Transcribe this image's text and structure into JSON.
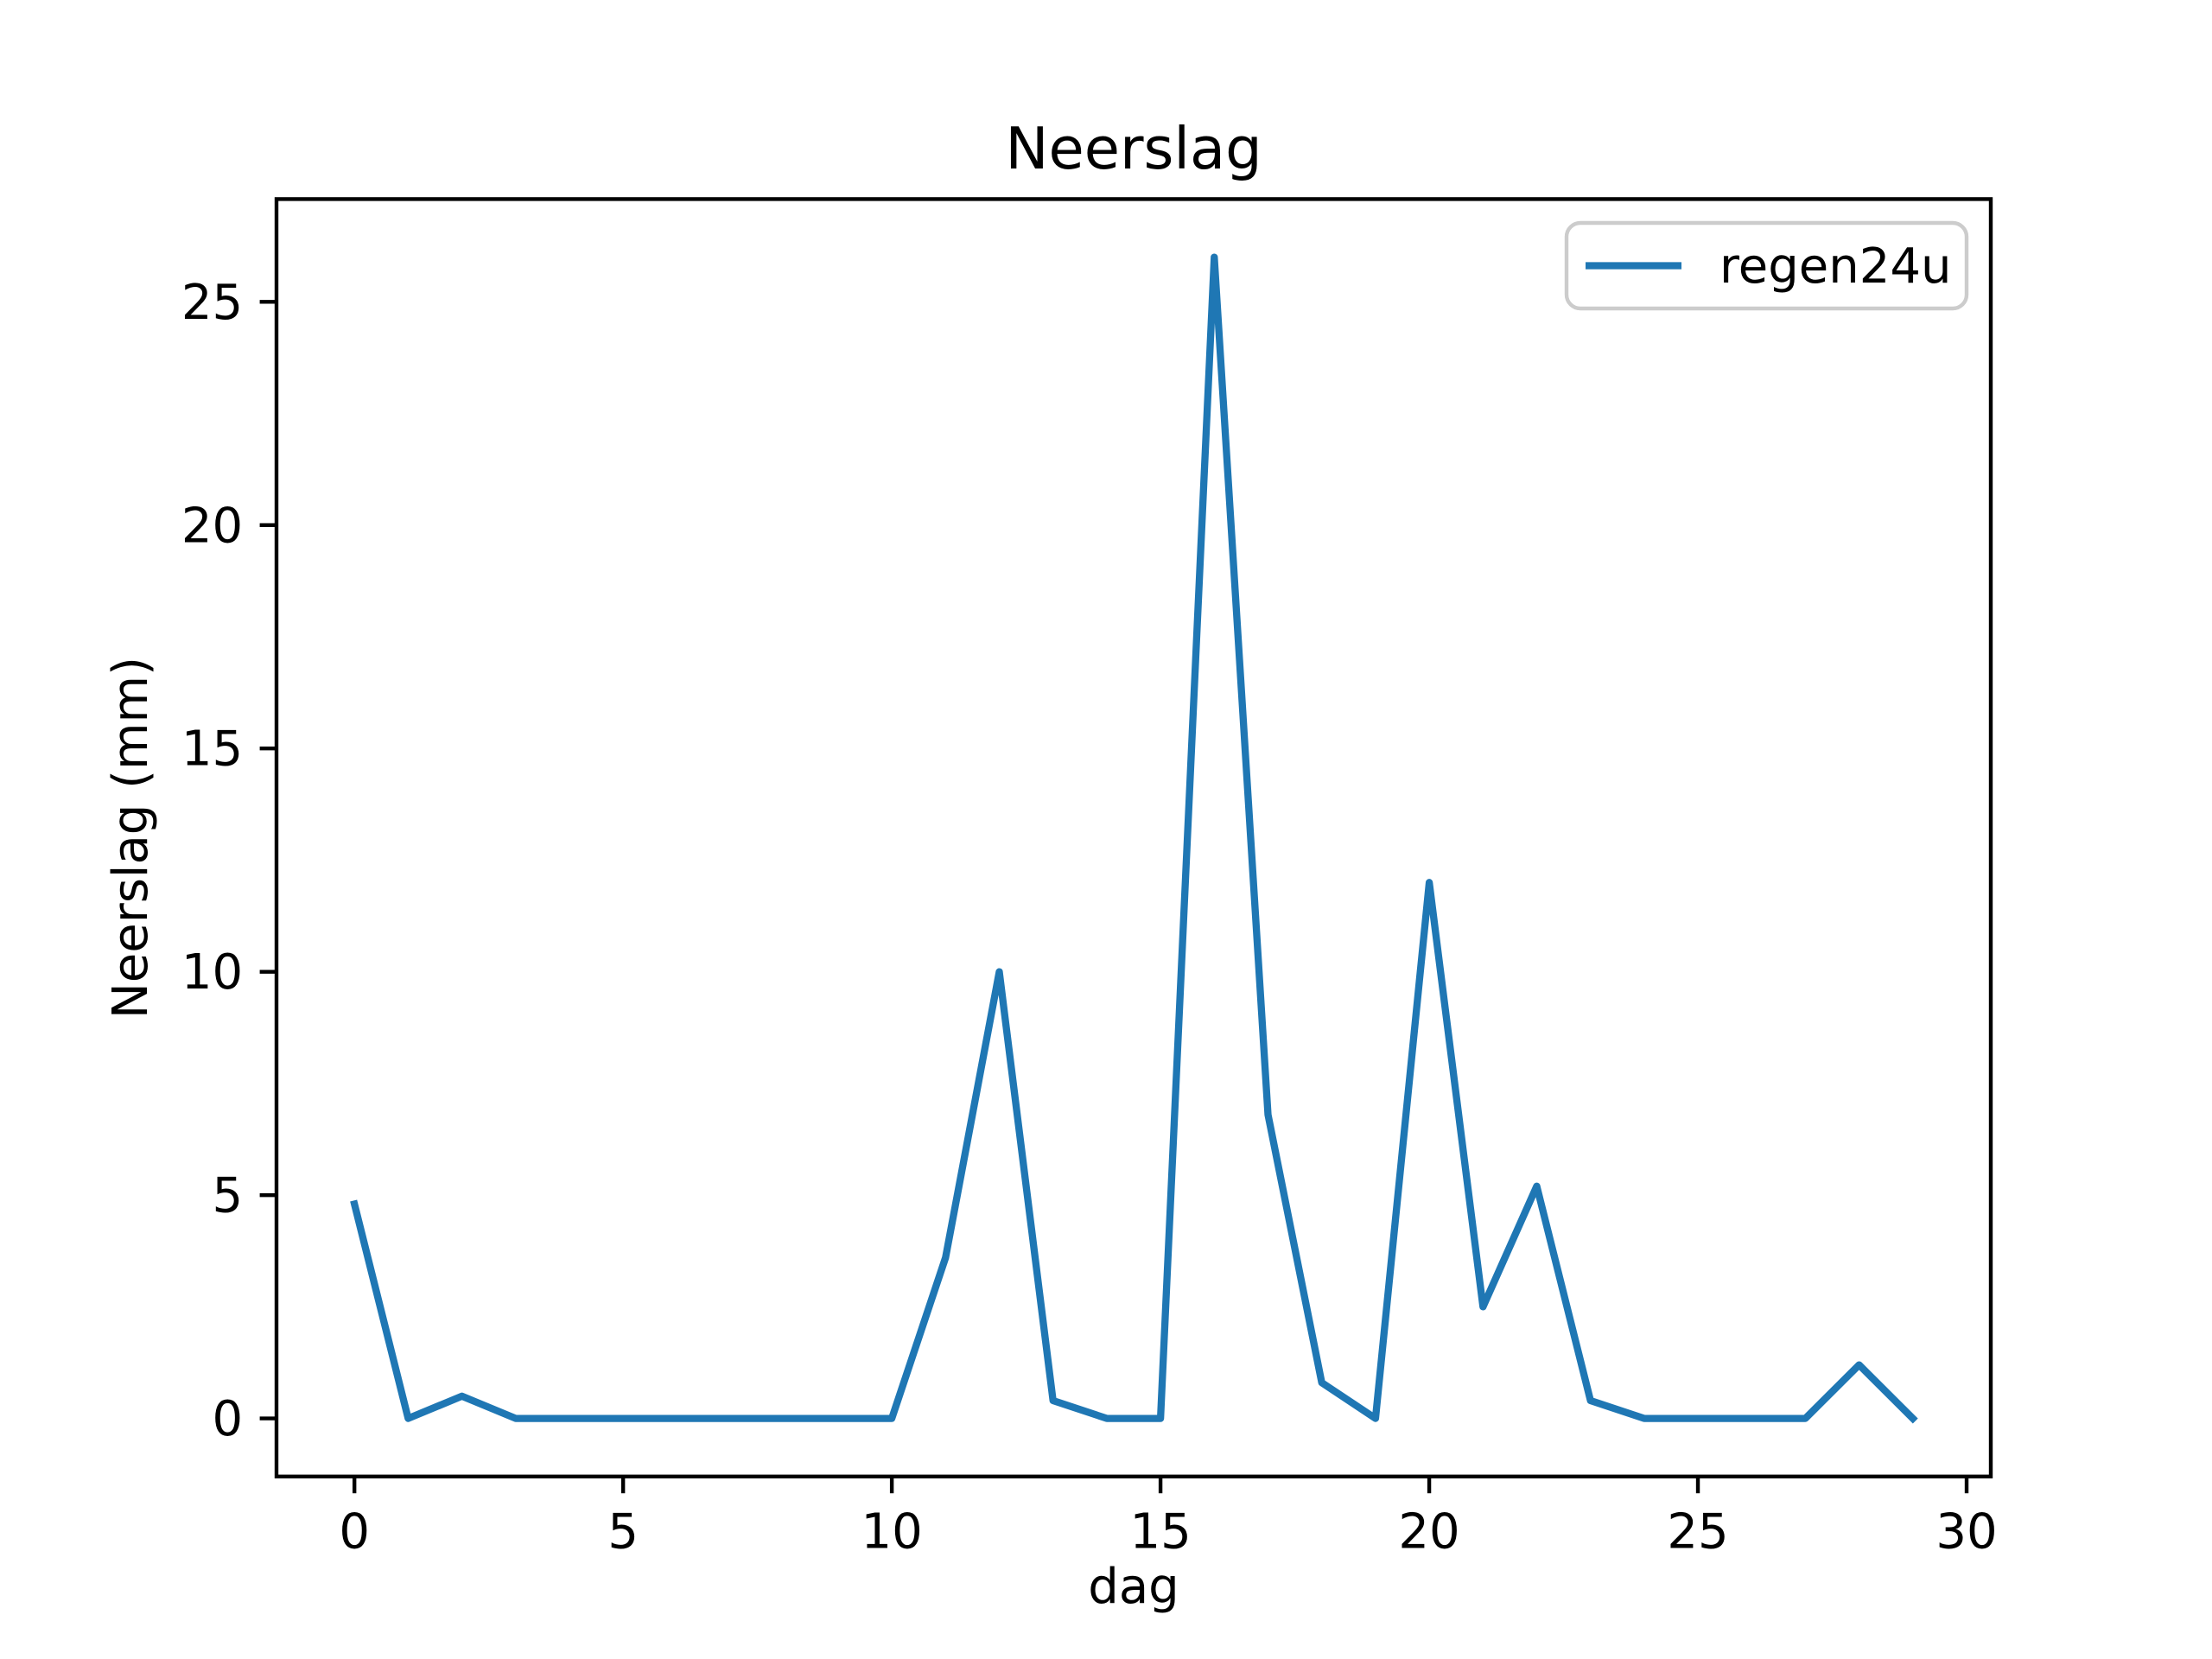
{
  "figure": {
    "background": "#ffffff",
    "text_color": "#000000",
    "spine_color": "#000000"
  },
  "chart_data": {
    "type": "line",
    "title": "Neerslag",
    "xlabel": "dag",
    "ylabel": "Neerslag (mm)",
    "grid": false,
    "legend_position": "upper-right",
    "legend": {
      "label": "regen24u"
    },
    "xlim": [
      -1.45,
      30.45
    ],
    "ylim": [
      -1.3,
      27.3
    ],
    "xticks": [
      0,
      5,
      10,
      15,
      20,
      25,
      30
    ],
    "xtick_labels": [
      "0",
      "5",
      "10",
      "15",
      "20",
      "25",
      "30"
    ],
    "yticks": [
      0,
      5,
      10,
      15,
      20,
      25
    ],
    "ytick_labels": [
      "0",
      "5",
      "10",
      "15",
      "20",
      "25"
    ],
    "x": [
      0,
      1,
      2,
      3,
      4,
      5,
      6,
      7,
      8,
      9,
      10,
      11,
      12,
      13,
      14,
      15,
      16,
      17,
      18,
      19,
      20,
      21,
      22,
      23,
      24,
      25,
      26,
      27,
      28,
      29
    ],
    "series": [
      {
        "name": "regen24u",
        "color": "#1f77b4",
        "values": [
          4.8,
          0,
          0.5,
          0,
          0,
          0,
          0,
          0,
          0,
          0,
          0,
          3.6,
          10,
          0.4,
          0,
          0,
          26,
          6.8,
          0.8,
          0,
          12,
          2.5,
          5.2,
          0.4,
          0,
          0,
          0,
          0,
          1.2,
          0
        ]
      }
    ]
  }
}
